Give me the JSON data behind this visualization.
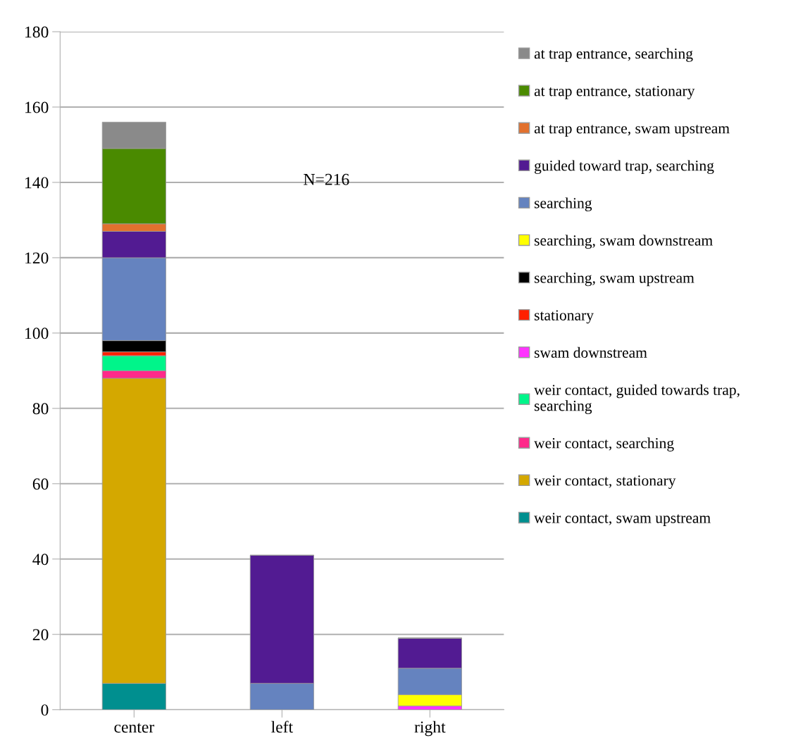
{
  "chart_data": {
    "type": "bar",
    "stacked": true,
    "categories": [
      "center",
      "left",
      "right"
    ],
    "series": [
      {
        "name": "weir contact, swam upstream",
        "color": "#008f8f",
        "values": [
          7,
          0,
          0
        ]
      },
      {
        "name": "weir contact, stationary",
        "color": "#d4a800",
        "values": [
          81,
          0,
          0
        ]
      },
      {
        "name": "weir contact, searching",
        "color": "#ff2a8a",
        "values": [
          2,
          0,
          0
        ]
      },
      {
        "name": "weir contact, guided towards trap, searching",
        "color": "#00f58a",
        "values": [
          4,
          0,
          0
        ]
      },
      {
        "name": "swam downstream",
        "color": "#ff33ff",
        "values": [
          0,
          0,
          1
        ]
      },
      {
        "name": "stationary",
        "color": "#ff2000",
        "values": [
          1,
          0,
          0
        ]
      },
      {
        "name": "searching, swam upstream",
        "color": "#000000",
        "values": [
          3,
          0,
          0
        ]
      },
      {
        "name": "searching, swam downstream",
        "color": "#ffff00",
        "values": [
          0,
          0,
          3
        ]
      },
      {
        "name": "searching",
        "color": "#6583bf",
        "values": [
          22,
          7,
          7
        ]
      },
      {
        "name": "guided toward trap, searching",
        "color": "#521b92",
        "values": [
          7,
          34,
          8
        ]
      },
      {
        "name": "at trap entrance, swam upstream",
        "color": "#e2712e",
        "values": [
          2,
          0,
          0
        ]
      },
      {
        "name": "at trap entrance, stationary",
        "color": "#4a8a00",
        "values": [
          20,
          0,
          0
        ]
      },
      {
        "name": "at trap entrance, searching",
        "color": "#8a8a8a",
        "values": [
          7,
          0,
          0
        ]
      }
    ],
    "ylim": [
      0,
      180
    ],
    "yticks": [
      0,
      20,
      40,
      60,
      80,
      100,
      120,
      140,
      160,
      180
    ],
    "grid": "y",
    "legend": "right",
    "annotations": [
      "N=216"
    ]
  }
}
